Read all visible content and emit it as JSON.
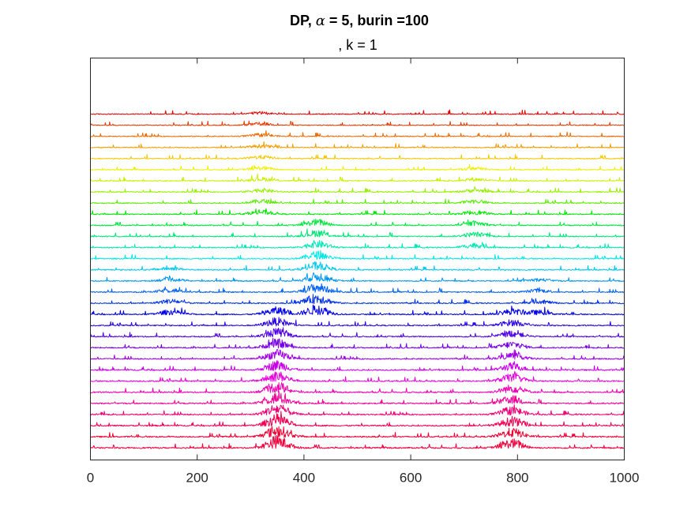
{
  "chart_data": {
    "type": "line",
    "title": {
      "prefix": "DP, ",
      "alpha_symbol": "α",
      "alpha_value": " = 5",
      "burnin": ", burin =100"
    },
    "subtitle": ", k = 1",
    "xlabel": "",
    "ylabel": "",
    "xlim": [
      0,
      1000
    ],
    "x_ticks": [
      0,
      200,
      400,
      600,
      800,
      1000
    ],
    "x_tick_labels": [
      "0",
      "200",
      "400",
      "600",
      "800",
      "1000"
    ],
    "y_ticks": [],
    "grid": false,
    "legend": "none",
    "series_count": 31,
    "series_colors": [
      "#e00000",
      "#e83a00",
      "#f06a00",
      "#f59b00",
      "#f5c800",
      "#f0f000",
      "#c8f000",
      "#96f000",
      "#5aeb00",
      "#00e600",
      "#00e63c",
      "#00e678",
      "#00e6b4",
      "#00e6e6",
      "#00c8f0",
      "#0096f0",
      "#0064f0",
      "#0032e6",
      "#0000e6",
      "#2800e6",
      "#5000e6",
      "#7800e6",
      "#a000e6",
      "#c800e6",
      "#e600dc",
      "#f000b4",
      "#f00096",
      "#f00078",
      "#f00050",
      "#f00032",
      "#f0003c"
    ],
    "baseline_offsets": [
      30,
      29,
      28,
      27,
      26,
      25,
      24,
      23,
      22,
      21,
      20,
      19,
      18,
      17,
      16,
      15,
      14,
      13,
      12,
      11,
      10,
      9,
      8,
      7,
      6,
      5,
      4,
      3,
      2,
      1,
      0
    ],
    "peaks": [
      {
        "series_from": 0,
        "series_to": 9,
        "x": 320,
        "height": 0.35
      },
      {
        "series_from": 5,
        "series_to": 12,
        "x": 720,
        "height": 0.4
      },
      {
        "series_from": 10,
        "series_to": 18,
        "x": 425,
        "height": 0.9
      },
      {
        "series_from": 14,
        "series_to": 18,
        "x": 150,
        "height": 0.4
      },
      {
        "series_from": 15,
        "series_to": 18,
        "x": 840,
        "height": 0.35
      },
      {
        "series_from": 18,
        "series_to": 30,
        "x": 350,
        "height": 1.1
      },
      {
        "series_from": 18,
        "series_to": 30,
        "x": 790,
        "height": 0.8
      }
    ],
    "points_per_series": 1000
  }
}
